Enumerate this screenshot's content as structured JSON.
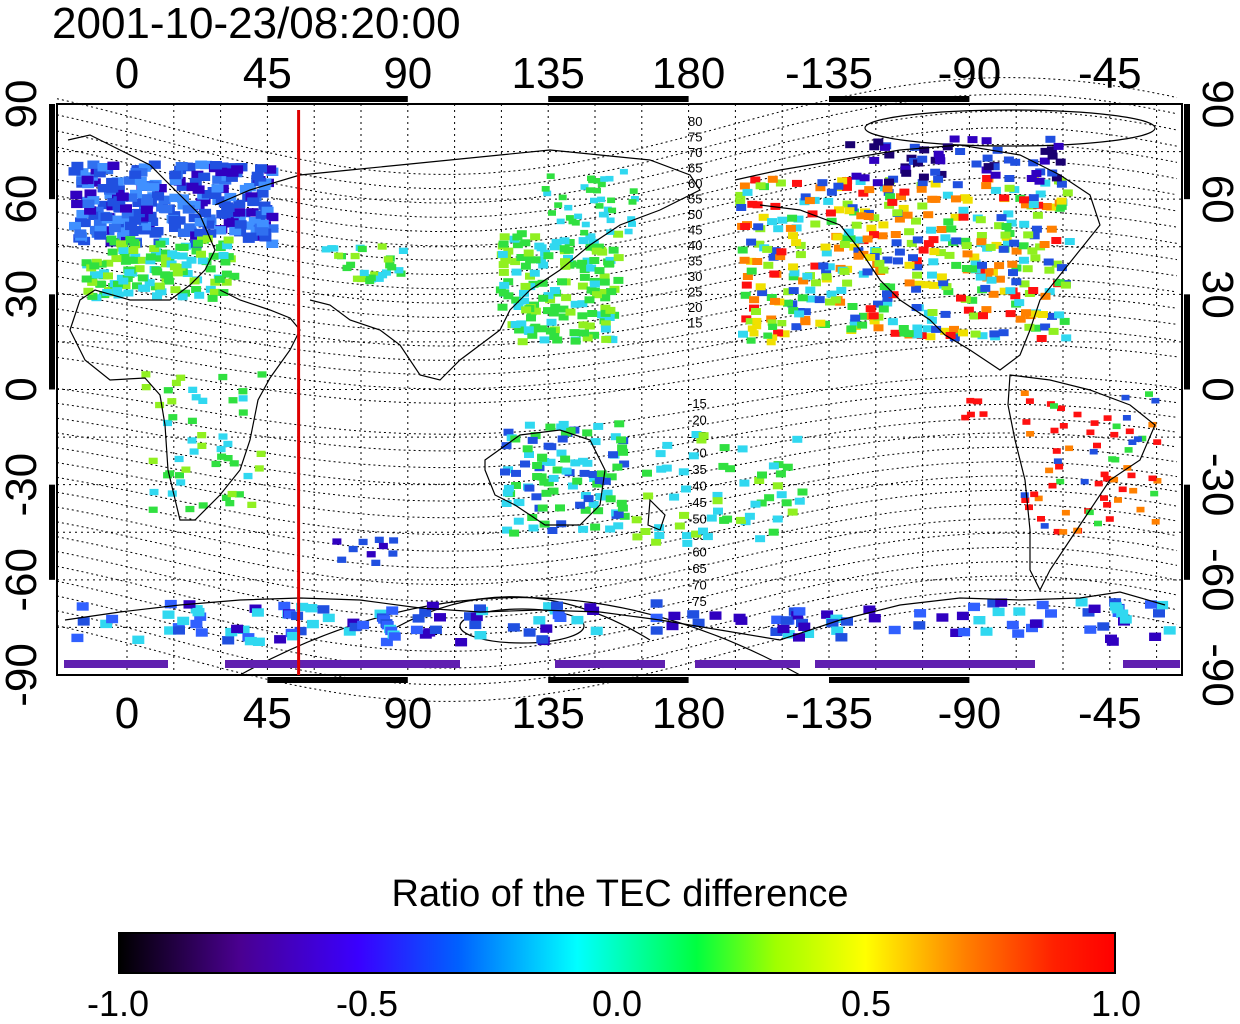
{
  "timestamp": "2001-10-23/08:20:00",
  "top_lon_labels": [
    "0",
    "45",
    "90",
    "135",
    "180",
    "-135",
    "-90",
    "-45"
  ],
  "bottom_lon_labels": [
    "0",
    "45",
    "90",
    "135",
    "180",
    "-135",
    "-90",
    "-45"
  ],
  "left_lat_labels": [
    "90",
    "60",
    "30",
    "0",
    "-30",
    "-60",
    "-90"
  ],
  "right_lat_labels": [
    "90",
    "60",
    "30",
    "0",
    "-30",
    "-60",
    "-90"
  ],
  "contour_labels_north": [
    "80",
    "75",
    "70",
    "65",
    "60",
    "55",
    "50",
    "45",
    "40",
    "35",
    "30",
    "25",
    "20",
    "15"
  ],
  "contour_labels_south": [
    "-15",
    "-20",
    "-25",
    "-30",
    "-35",
    "-40",
    "-45",
    "-50",
    "-55",
    "-60",
    "-65",
    "-70",
    "-75"
  ],
  "marker_line": {
    "longitude": 55,
    "color": "#dd0000"
  },
  "colorbar": {
    "title": "Ratio of the TEC difference",
    "labels": [
      "-1.0",
      "-0.5",
      "0.0",
      "0.5",
      "1.0"
    ]
  },
  "colors": {
    "blue": "#2050e0",
    "deep_blue": "#3000c0",
    "cyan": "#30d8f0",
    "green": "#30e040",
    "lime": "#90f020",
    "yellow": "#f0e000",
    "orange": "#ff8000",
    "red": "#ff1010",
    "purple": "#6020b0"
  }
}
